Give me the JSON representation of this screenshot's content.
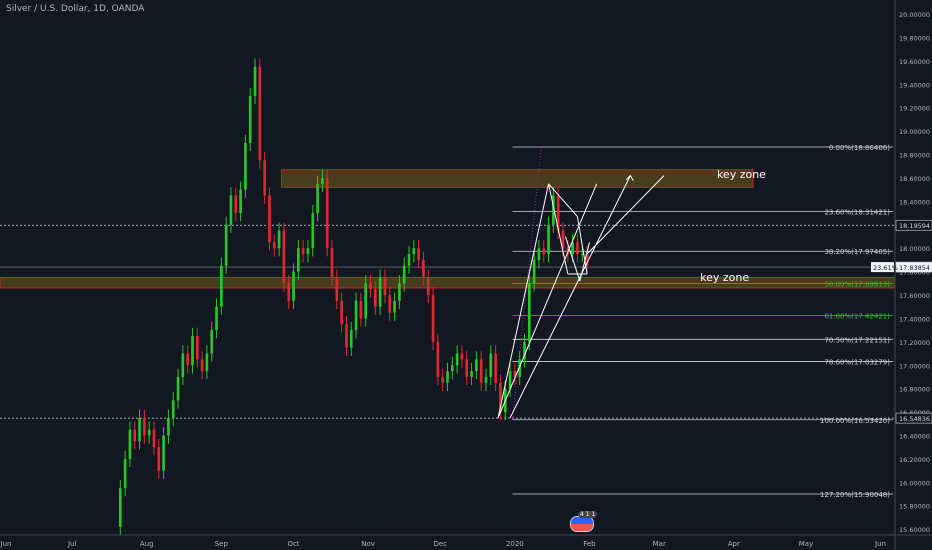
{
  "window": {
    "title": "Silver / U.S. Dollar, 1D, OANDA"
  },
  "news_badge": "4 1 1",
  "colors": {
    "background": "#131722",
    "up": "#26c826",
    "down": "#e0282e",
    "zone_fill": "#5a4a1a",
    "zone_border": "#c62828",
    "fib_line": "#d1d4dc",
    "fib_green": "#26c826",
    "white": "#ffffff",
    "dotted_purple": "#9c27b0"
  },
  "chart_data": {
    "type": "candlestick",
    "symbol": "Silver / U.S. Dollar",
    "interval": "1D",
    "source": "OANDA",
    "ylim": [
      15.55,
      20.12
    ],
    "x_labels": [
      "Jun",
      "Jul",
      "Aug",
      "Sep",
      "Oct",
      "Nov",
      "Dec",
      "2020",
      "Feb",
      "Mar",
      "Apr",
      "May",
      "Jun"
    ],
    "x_label_days": [
      0,
      30,
      61,
      92,
      122,
      153,
      183,
      214,
      245,
      274,
      305,
      335,
      366
    ],
    "x_range_days": [
      0,
      372
    ],
    "y_ticks": [
      "20.00000",
      "19.80000",
      "19.60000",
      "19.40000",
      "19.20000",
      "19.00000",
      "18.80000",
      "18.60000",
      "18.40000",
      "18.20000",
      "18.00000",
      "17.80000",
      "17.60000",
      "17.40000",
      "17.20000",
      "17.00000",
      "16.80000",
      "16.60000",
      "16.40000",
      "16.20000",
      "16.00000",
      "15.80000",
      "15.60000"
    ],
    "price_labels": [
      {
        "text": "18.19594",
        "value": 18.19594,
        "style": "dashed"
      },
      {
        "text": "17.83854",
        "value": 17.83854,
        "style": "last",
        "prefix": "23.61%"
      },
      {
        "text": "16.54836",
        "value": 16.54836,
        "style": "dashed"
      }
    ],
    "close_series": [
      [
        48,
        15.62
      ],
      [
        50,
        15.95
      ],
      [
        52,
        16.2
      ],
      [
        54,
        16.45
      ],
      [
        56,
        16.35
      ],
      [
        58,
        16.55
      ],
      [
        60,
        16.4
      ],
      [
        62,
        16.45
      ],
      [
        64,
        16.3
      ],
      [
        66,
        16.1
      ],
      [
        68,
        16.4
      ],
      [
        70,
        16.55
      ],
      [
        72,
        16.7
      ],
      [
        74,
        16.9
      ],
      [
        76,
        17.1
      ],
      [
        78,
        17.0
      ],
      [
        80,
        17.25
      ],
      [
        82,
        17.05
      ],
      [
        84,
        16.95
      ],
      [
        86,
        17.1
      ],
      [
        88,
        17.3
      ],
      [
        90,
        17.5
      ],
      [
        92,
        17.85
      ],
      [
        94,
        18.2
      ],
      [
        96,
        18.45
      ],
      [
        98,
        18.3
      ],
      [
        100,
        18.5
      ],
      [
        102,
        18.9
      ],
      [
        104,
        19.3
      ],
      [
        106,
        19.55
      ],
      [
        108,
        18.75
      ],
      [
        110,
        18.45
      ],
      [
        112,
        18.05
      ],
      [
        114,
        18.0
      ],
      [
        116,
        18.15
      ],
      [
        118,
        17.7
      ],
      [
        120,
        17.55
      ],
      [
        122,
        17.8
      ],
      [
        124,
        18.0
      ],
      [
        126,
        17.95
      ],
      [
        128,
        18.0
      ],
      [
        130,
        18.3
      ],
      [
        132,
        18.55
      ],
      [
        134,
        18.6
      ],
      [
        136,
        18.0
      ],
      [
        138,
        17.75
      ],
      [
        140,
        17.55
      ],
      [
        142,
        17.35
      ],
      [
        144,
        17.15
      ],
      [
        146,
        17.3
      ],
      [
        148,
        17.55
      ],
      [
        150,
        17.4
      ],
      [
        152,
        17.7
      ],
      [
        154,
        17.65
      ],
      [
        156,
        17.5
      ],
      [
        158,
        17.75
      ],
      [
        160,
        17.6
      ],
      [
        162,
        17.45
      ],
      [
        164,
        17.55
      ],
      [
        166,
        17.7
      ],
      [
        168,
        17.85
      ],
      [
        170,
        17.95
      ],
      [
        172,
        18.0
      ],
      [
        174,
        17.9
      ],
      [
        176,
        17.75
      ],
      [
        178,
        17.6
      ],
      [
        180,
        17.2
      ],
      [
        182,
        16.9
      ],
      [
        184,
        16.85
      ],
      [
        186,
        16.95
      ],
      [
        188,
        17.0
      ],
      [
        190,
        17.1
      ],
      [
        192,
        17.05
      ],
      [
        194,
        16.9
      ],
      [
        196,
        16.95
      ],
      [
        198,
        17.05
      ],
      [
        200,
        16.85
      ],
      [
        202,
        16.9
      ],
      [
        204,
        17.1
      ],
      [
        206,
        16.85
      ],
      [
        208,
        16.6
      ],
      [
        210,
        16.8
      ],
      [
        212,
        16.95
      ],
      [
        214,
        16.9
      ],
      [
        216,
        17.05
      ],
      [
        218,
        17.2
      ],
      [
        220,
        17.7
      ],
      [
        222,
        17.9
      ],
      [
        224,
        18.0
      ],
      [
        226,
        17.95
      ],
      [
        228,
        18.2
      ],
      [
        230,
        18.45
      ],
      [
        232,
        18.15
      ],
      [
        234,
        18.0
      ],
      [
        236,
        17.95
      ],
      [
        238,
        18.05
      ],
      [
        240,
        17.95
      ],
      [
        242,
        17.95
      ],
      [
        244,
        17.85
      ]
    ],
    "fib_levels": [
      {
        "label": "0.00%(18.86406)",
        "value": 18.86406,
        "color": "white"
      },
      {
        "label": "23.60%(18.31421)",
        "value": 18.31421,
        "color": "white"
      },
      {
        "label": "38.20%(17.97405)",
        "value": 17.97405,
        "color": "white"
      },
      {
        "label": "50.00%(17.69913)",
        "value": 17.69913,
        "color": "green"
      },
      {
        "label": "61.80%(17.42421)",
        "value": 17.42421,
        "color": "green"
      },
      {
        "label": "70.50%(17.22151)",
        "value": 17.22151,
        "color": "white"
      },
      {
        "label": "78.60%(17.03279)",
        "value": 17.03279,
        "color": "white"
      },
      {
        "label": "100.00%(16.53420)",
        "value": 16.5342,
        "color": "white"
      },
      {
        "label": "127.20%(15.90048)",
        "value": 15.90048,
        "color": "white"
      }
    ],
    "fib_x_range_days": [
      213,
      412
    ],
    "zones": [
      {
        "label": "key zone",
        "y_range": [
          18.52,
          18.67
        ],
        "x_range_days": [
          117,
          313
        ]
      },
      {
        "label": "key zone",
        "y_range": [
          17.66,
          17.75
        ],
        "x_range_days": [
          0,
          372
        ]
      }
    ],
    "annotations": [
      {
        "text": "key zone",
        "day": 298,
        "value": 18.6
      },
      {
        "text": "key zone",
        "day": 291,
        "value": 17.72
      }
    ]
  }
}
